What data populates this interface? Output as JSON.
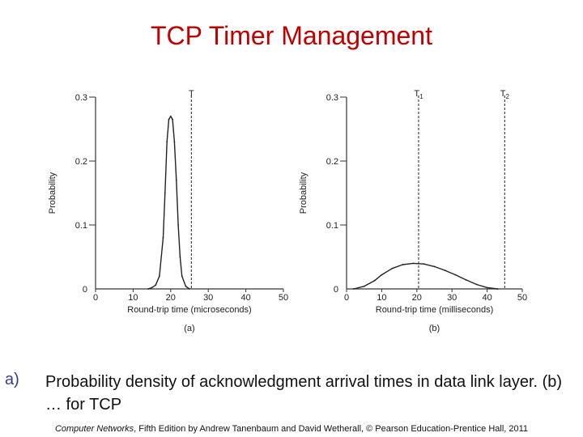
{
  "slide": {
    "title": "TCP Timer Management",
    "bullet_marker": "a)",
    "bullet_text": "Probability density of acknowledgment arrival times in data link layer.   (b) … for TCP",
    "footer_italic": "Computer Networks",
    "footer_rest": ", Fifth Edition by Andrew Tanenbaum and David Wetherall, © Pearson Education-Prentice Hall, 2011"
  },
  "chart_data": [
    {
      "type": "line",
      "panel_label": "(a)",
      "xlabel": "Round-trip time (microseconds)",
      "ylabel": "Probability",
      "xlim": [
        0,
        50
      ],
      "ylim": [
        0,
        0.3
      ],
      "xticks": [
        "0",
        "10",
        "20",
        "30",
        "40",
        "50"
      ],
      "yticks": [
        "0",
        "0.1",
        "0.2",
        "0.3"
      ],
      "x": [
        14,
        15,
        16,
        17,
        18,
        18.5,
        19,
        19.5,
        20,
        20.5,
        21,
        21.5,
        22,
        22.5,
        23,
        24,
        25
      ],
      "y": [
        0,
        0.002,
        0.006,
        0.02,
        0.08,
        0.15,
        0.23,
        0.265,
        0.27,
        0.265,
        0.23,
        0.17,
        0.1,
        0.05,
        0.02,
        0.004,
        0
      ],
      "marker": {
        "label": "T",
        "x": 25.5
      }
    },
    {
      "type": "line",
      "panel_label": "(b)",
      "xlabel": "Round-trip time (milliseconds)",
      "ylabel": "Probability",
      "xlim": [
        0,
        50
      ],
      "ylim": [
        0,
        0.3
      ],
      "xticks": [
        "0",
        "10",
        "20",
        "30",
        "40",
        "50"
      ],
      "yticks": [
        "0",
        "0.1",
        "0.2",
        "0.3"
      ],
      "x": [
        2,
        5,
        8,
        10,
        13,
        16,
        19,
        22,
        25,
        28,
        31,
        34,
        37,
        40,
        43
      ],
      "y": [
        0,
        0.004,
        0.013,
        0.022,
        0.032,
        0.038,
        0.04,
        0.039,
        0.035,
        0.029,
        0.022,
        0.014,
        0.007,
        0.002,
        0
      ],
      "markers": [
        {
          "label": "T",
          "sub": "1",
          "x": 20.5
        },
        {
          "label": "T",
          "sub": "2",
          "x": 45
        }
      ]
    }
  ]
}
